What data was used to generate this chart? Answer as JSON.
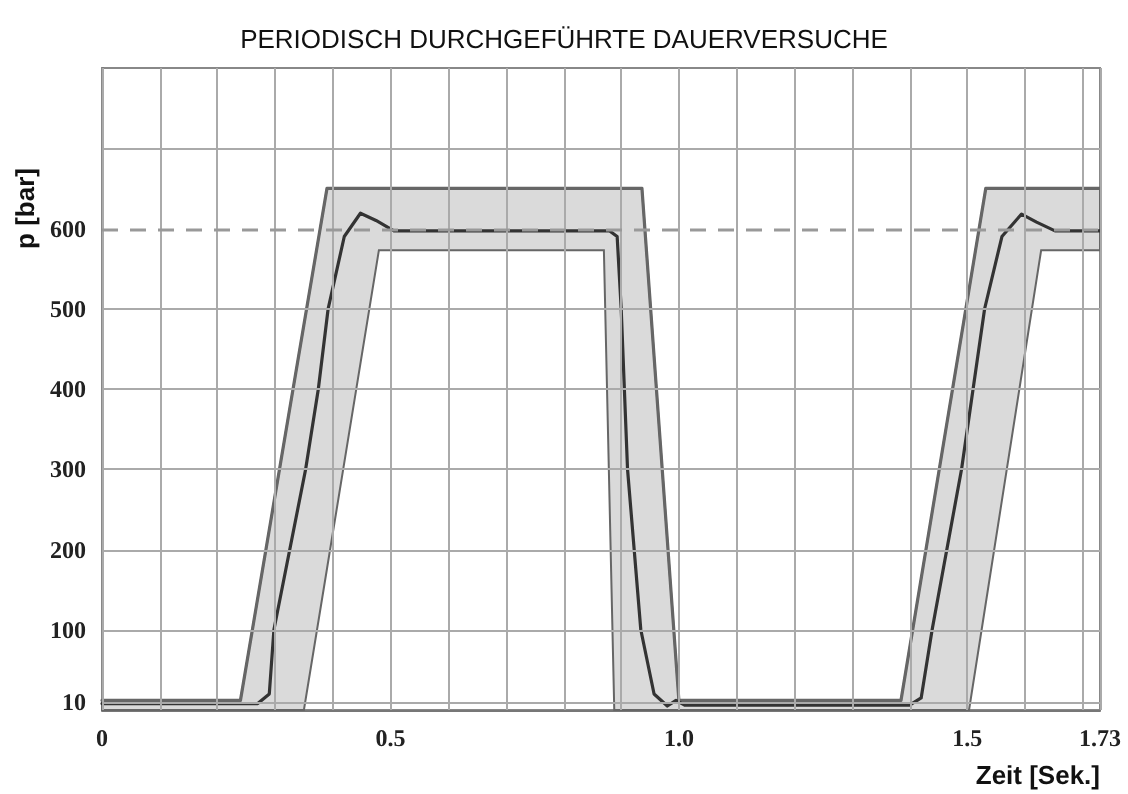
{
  "chart_data": {
    "type": "line",
    "title": "PERIODISCH DURCHGEFÜHRTE DAUERVERSUCHE",
    "xlabel": "Zeit [Sek.]",
    "ylabel": "p [bar]",
    "xlim": [
      0,
      1.73
    ],
    "xticks": [
      0,
      {
        "value": 0.1,
        "label": null
      },
      {
        "value": 0.2,
        "label": null
      },
      {
        "value": 0.3,
        "label": null
      },
      {
        "value": 0.4,
        "label": null
      },
      0.5,
      {
        "value": 0.6,
        "label": null
      },
      {
        "value": 0.7,
        "label": null
      },
      {
        "value": 0.8,
        "label": null
      },
      {
        "value": 0.9,
        "label": null
      },
      {
        "value": 1,
        "label": "1.0"
      },
      {
        "value": 1.1,
        "label": null
      },
      {
        "value": 1.2,
        "label": null
      },
      {
        "value": 1.3,
        "label": null
      },
      {
        "value": 1.4,
        "label": null
      },
      1.5,
      {
        "value": 1.6,
        "label": null
      },
      {
        "value": 1.7,
        "label": null
      },
      1.73
    ],
    "ylim": [
      0,
      800
    ],
    "yticks": [
      10,
      100,
      200,
      300,
      400,
      500,
      600,
      {
        "value": 700,
        "label": null
      }
    ],
    "grid": true,
    "marker": "none",
    "line_style": "solid",
    "ref_lines": [
      {
        "axis": "y",
        "value": 600,
        "line_style": "dashed",
        "color": "#999999"
      }
    ],
    "series": [
      {
        "color": "#666666",
        "x": [
          0,
          0.24,
          0.35,
          0.39,
          0.48,
          0.87,
          0.888,
          0.936,
          1.0,
          1.385,
          1.503,
          1.532,
          1.628,
          1.73
        ],
        "values": [
          12,
          12,
          480,
          650,
          650,
          650,
          650,
          650,
          12,
          12,
          524,
          650,
          650,
          650
        ],
        "upper": [
          12,
          12,
          480,
          650,
          650,
          650,
          650,
          650,
          12,
          12,
          524,
          650,
          650,
          650
        ],
        "lower": [
          0,
          0,
          0,
          176,
          573,
          573,
          0,
          0,
          0,
          0,
          0,
          133,
          573,
          573
        ]
      },
      {
        "color": "#333333",
        "x": [
          0,
          0.27,
          0.29,
          0.298,
          0.353,
          0.375,
          0.392,
          0.42,
          0.448,
          0.475,
          0.506,
          0.88,
          0.893,
          0.9,
          0.911,
          0.934,
          0.957,
          0.98,
          0.995,
          1.01,
          1.4,
          1.42,
          1.439,
          1.49,
          1.53,
          1.56,
          1.594,
          1.62,
          1.652,
          1.73
        ],
        "values": [
          8,
          8,
          20,
          100,
          300,
          400,
          500,
          590,
          619,
          610,
          597,
          597,
          590,
          500,
          300,
          100,
          20,
          5,
          12,
          6,
          6,
          15,
          100,
          300,
          500,
          590,
          618,
          608,
          597,
          597
        ]
      }
    ]
  }
}
